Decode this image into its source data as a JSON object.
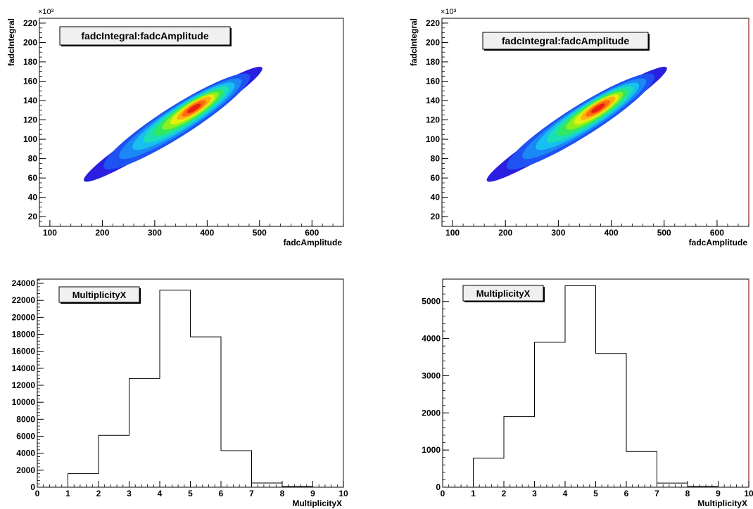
{
  "chart_data": [
    {
      "type": "heatmap",
      "title": "fadcIntegral:fadcAmplitude",
      "xlabel": "fadcAmplitude",
      "ylabel": "fadcIntegral",
      "y_exponent_label": "×10³",
      "xlim": [
        80,
        660
      ],
      "ylim": [
        10,
        225
      ],
      "xticks": [
        100,
        200,
        300,
        400,
        500,
        600
      ],
      "yticks": [
        20,
        40,
        60,
        80,
        100,
        120,
        140,
        160,
        180,
        200,
        220
      ],
      "distribution": {
        "center": [
          375,
          132
        ],
        "start": [
          165,
          57
        ],
        "end": [
          505,
          174
        ],
        "unit": "y in thousands"
      }
    },
    {
      "type": "heatmap",
      "title": "fadcIntegral:fadcAmplitude",
      "xlabel": "fadcAmplitude",
      "ylabel": "fadcIntegral",
      "y_exponent_label": "×10³",
      "xlim": [
        80,
        660
      ],
      "ylim": [
        10,
        225
      ],
      "xticks": [
        100,
        200,
        300,
        400,
        500,
        600
      ],
      "yticks": [
        20,
        40,
        60,
        80,
        100,
        120,
        140,
        160,
        180,
        200,
        220
      ],
      "distribution": {
        "center": [
          375,
          132
        ],
        "start": [
          165,
          57
        ],
        "end": [
          505,
          174
        ],
        "unit": "y in thousands"
      }
    },
    {
      "type": "bar",
      "title": "MultiplicityX",
      "xlabel": "MultiplicityX",
      "ylabel": "",
      "xlim": [
        0,
        10
      ],
      "ylim": [
        0,
        24500
      ],
      "xticks": [
        0,
        1,
        2,
        3,
        4,
        5,
        6,
        7,
        8,
        9,
        10
      ],
      "yticks": [
        0,
        2000,
        4000,
        6000,
        8000,
        10000,
        12000,
        14000,
        16000,
        18000,
        20000,
        22000,
        24000
      ],
      "bins": [
        [
          0,
          1
        ],
        [
          1,
          2
        ],
        [
          2,
          3
        ],
        [
          3,
          4
        ],
        [
          4,
          5
        ],
        [
          5,
          6
        ],
        [
          6,
          7
        ],
        [
          7,
          8
        ],
        [
          8,
          9
        ],
        [
          9,
          10
        ]
      ],
      "values": [
        0,
        1600,
        6100,
        12800,
        23200,
        17700,
        4300,
        500,
        80,
        0
      ]
    },
    {
      "type": "bar",
      "title": "MultiplicityX",
      "xlabel": "MultiplicityX",
      "ylabel": "",
      "xlim": [
        0,
        10
      ],
      "ylim": [
        0,
        5600
      ],
      "xticks": [
        0,
        1,
        2,
        3,
        4,
        5,
        6,
        7,
        8,
        9,
        10
      ],
      "yticks": [
        0,
        1000,
        2000,
        3000,
        4000,
        5000
      ],
      "bins": [
        [
          0,
          1
        ],
        [
          1,
          2
        ],
        [
          2,
          3
        ],
        [
          3,
          4
        ],
        [
          4,
          5
        ],
        [
          5,
          6
        ],
        [
          6,
          7
        ],
        [
          7,
          8
        ],
        [
          8,
          9
        ],
        [
          9,
          10
        ]
      ],
      "values": [
        0,
        780,
        1900,
        3900,
        5420,
        3600,
        960,
        110,
        25,
        0
      ]
    }
  ]
}
